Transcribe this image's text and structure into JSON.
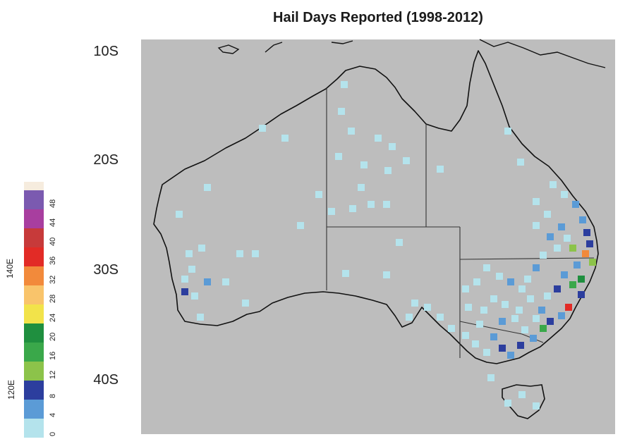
{
  "title": "Hail Days Reported (1998-2012)",
  "latitude_labels": [
    "10S",
    "20S",
    "30S",
    "40S"
  ],
  "longitude_labels": [
    "140E",
    "120E"
  ],
  "legend": {
    "ticks": [
      "0",
      "4",
      "8",
      "12",
      "16",
      "20",
      "24",
      "28",
      "32",
      "36",
      "40",
      "44",
      "48"
    ],
    "colors": [
      "#b4e3ec",
      "#5b9bd6",
      "#2c3e9e",
      "#8cc34a",
      "#3aa84a",
      "#1f8f3f",
      "#f2e34a",
      "#f9c46b",
      "#f28a3b",
      "#e22b26",
      "#c73a3a",
      "#a83e9f",
      "#7b5ab0"
    ]
  },
  "map": {
    "background": "#bdbdbd",
    "border_color": "#1a1a1a"
  }
}
